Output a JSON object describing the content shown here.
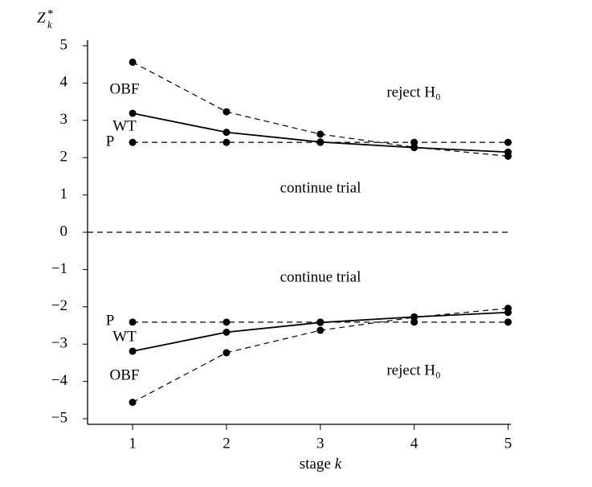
{
  "chart_data": {
    "type": "line",
    "ylabel": {
      "base": "Z",
      "sup": "*",
      "sub": "k"
    },
    "xlabel": {
      "text": "stage",
      "italic": "k"
    },
    "x": [
      1,
      2,
      3,
      4,
      5
    ],
    "series": [
      {
        "name": "OBF",
        "color": "#000000",
        "dash": true,
        "values": [
          4.56,
          3.23,
          2.63,
          2.28,
          2.04
        ]
      },
      {
        "name": "WT",
        "color": "#000000",
        "dash": false,
        "values": [
          3.19,
          2.68,
          2.42,
          2.27,
          2.15
        ]
      },
      {
        "name": "P",
        "color": "#000000",
        "dash": true,
        "values": [
          2.41,
          2.41,
          2.41,
          2.41,
          2.41
        ]
      },
      {
        "name": "P",
        "color": "#000000",
        "dash": true,
        "values": [
          -2.41,
          -2.41,
          -2.41,
          -2.41,
          -2.41
        ]
      },
      {
        "name": "WT",
        "color": "#000000",
        "dash": false,
        "values": [
          -3.19,
          -2.68,
          -2.42,
          -2.27,
          -2.15
        ]
      },
      {
        "name": "OBF",
        "color": "#000000",
        "dash": true,
        "values": [
          -4.56,
          -3.23,
          -2.63,
          -2.28,
          -2.04
        ]
      }
    ],
    "reference_line": 0,
    "annotations": [
      "reject H₀",
      "continue trial",
      "continue trial",
      "reject H₀"
    ],
    "xlim": [
      0.52,
      5.03
    ],
    "ylim": [
      -5.15,
      5.15
    ],
    "xticks": [
      1,
      2,
      3,
      4,
      5
    ],
    "yticks": [
      {
        "value": -5,
        "label": "−5"
      },
      {
        "value": -4,
        "label": "−4"
      },
      {
        "value": -3,
        "label": "−3"
      },
      {
        "value": -2,
        "label": "−2"
      },
      {
        "value": -1,
        "label": "−1"
      },
      0,
      1,
      2,
      3,
      4,
      5
    ]
  }
}
